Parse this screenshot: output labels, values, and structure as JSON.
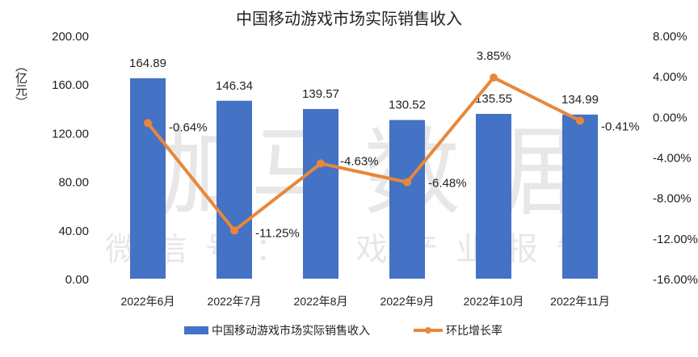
{
  "chart_data": {
    "type": "bar",
    "title": "中国移动游戏市场实际销售收入",
    "ylabel": "（亿元）",
    "categories": [
      "2022年6月",
      "2022年7月",
      "2022年8月",
      "2022年9月",
      "2022年10月",
      "2022年11月"
    ],
    "ylim": [
      0,
      200
    ],
    "y_ticks": [
      "0.00",
      "40.00",
      "80.00",
      "120.00",
      "160.00",
      "200.00"
    ],
    "y2lim": [
      -16,
      8
    ],
    "y2_ticks": [
      "-16.00%",
      "-12.00%",
      "-8.00%",
      "-4.00%",
      "0.00%",
      "4.00%",
      "8.00%"
    ],
    "grid": false,
    "legend_position": "bottom",
    "series": [
      {
        "name": "中国移动游戏市场实际销售收入",
        "type": "bar",
        "axis": "left",
        "color": "#4472C4",
        "values": [
          164.89,
          146.34,
          139.57,
          130.52,
          135.55,
          134.99
        ],
        "labels": [
          "164.89",
          "146.34",
          "139.57",
          "130.52",
          "135.55",
          "134.99"
        ]
      },
      {
        "name": "环比增长率",
        "type": "line",
        "axis": "right",
        "color": "#E8873A",
        "values": [
          -0.64,
          -11.25,
          -4.63,
          -6.48,
          3.85,
          -0.41
        ],
        "labels": [
          "-0.64%",
          "-11.25%",
          "-4.63%",
          "-6.48%",
          "3.85%",
          "-0.41%"
        ]
      }
    ],
    "watermark": {
      "main": "伽马数据",
      "sub": "微信号：游戏产业报告"
    }
  }
}
